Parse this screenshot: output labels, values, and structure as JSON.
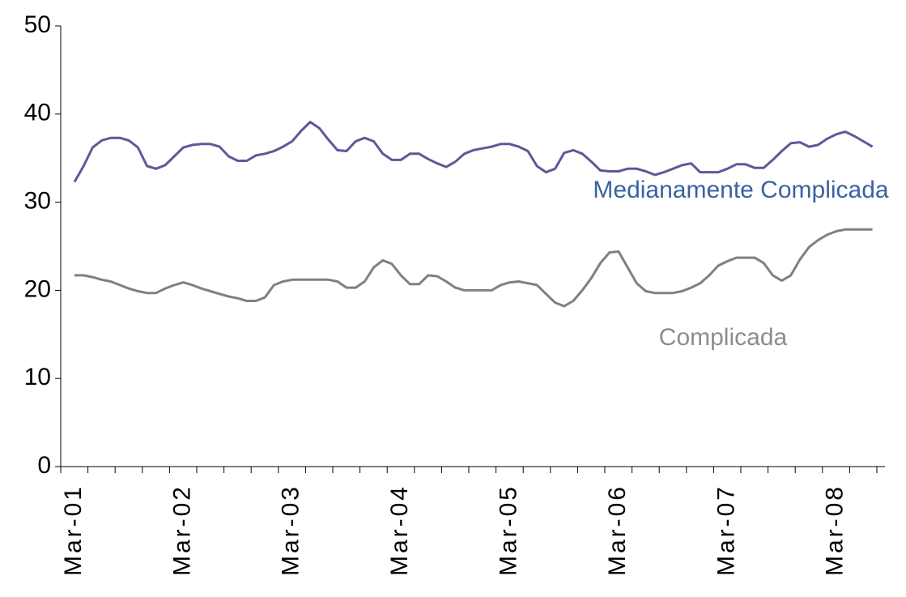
{
  "chart_data": {
    "type": "line",
    "categories": [
      "Mar-01",
      null,
      null,
      null,
      null,
      null,
      null,
      null,
      null,
      null,
      null,
      null,
      "Mar-02",
      null,
      null,
      null,
      null,
      null,
      null,
      null,
      null,
      null,
      null,
      null,
      "Mar-03",
      null,
      null,
      null,
      null,
      null,
      null,
      null,
      null,
      null,
      null,
      null,
      "Mar-04",
      null,
      null,
      null,
      null,
      null,
      null,
      null,
      null,
      null,
      null,
      null,
      "Mar-05",
      null,
      null,
      null,
      null,
      null,
      null,
      null,
      null,
      null,
      null,
      null,
      "Mar-06",
      null,
      null,
      null,
      null,
      null,
      null,
      null,
      null,
      null,
      null,
      null,
      "Mar-07",
      null,
      null,
      null,
      null,
      null,
      null,
      null,
      null,
      null,
      null,
      null,
      "Mar-08",
      null,
      null,
      null,
      null
    ],
    "series": [
      {
        "name": "Medianamente Complicada",
        "color": "#5a5a9a",
        "label_color": "#3a62a0",
        "values": [
          32.3,
          34.1,
          36.2,
          37.0,
          37.3,
          37.3,
          37.0,
          36.2,
          34.1,
          33.8,
          34.2,
          35.2,
          36.2,
          36.5,
          36.6,
          36.6,
          36.3,
          35.2,
          34.7,
          34.7,
          35.3,
          35.5,
          35.8,
          36.3,
          36.9,
          38.1,
          39.1,
          38.4,
          37.1,
          35.9,
          35.8,
          36.9,
          37.3,
          36.9,
          35.5,
          34.8,
          34.8,
          35.5,
          35.5,
          34.9,
          34.4,
          34.0,
          34.6,
          35.5,
          35.9,
          36.1,
          36.3,
          36.6,
          36.6,
          36.3,
          35.8,
          34.1,
          33.4,
          33.8,
          35.6,
          35.9,
          35.5,
          34.6,
          33.6,
          33.5,
          33.5,
          33.8,
          33.8,
          33.5,
          33.1,
          33.4,
          33.8,
          34.2,
          34.4,
          33.4,
          33.4,
          33.4,
          33.8,
          34.3,
          34.3,
          33.9,
          33.9,
          34.8,
          35.8,
          36.7,
          36.8,
          36.3,
          36.5,
          37.2,
          37.7,
          38.0,
          37.5,
          36.9,
          36.3
        ]
      },
      {
        "name": "Complicada",
        "color": "#808080",
        "label_color": "#8c8c8c",
        "values": [
          21.7,
          21.7,
          21.5,
          21.2,
          21.0,
          20.6,
          20.2,
          19.9,
          19.7,
          19.7,
          20.2,
          20.6,
          20.9,
          20.6,
          20.2,
          19.9,
          19.6,
          19.3,
          19.1,
          18.8,
          18.8,
          19.2,
          20.6,
          21.0,
          21.2,
          21.2,
          21.2,
          21.2,
          21.2,
          21.0,
          20.3,
          20.3,
          21.0,
          22.6,
          23.4,
          23.0,
          21.7,
          20.7,
          20.7,
          21.7,
          21.6,
          21.0,
          20.3,
          20.0,
          20.0,
          20.0,
          20.0,
          20.6,
          20.9,
          21.0,
          20.8,
          20.6,
          19.6,
          18.6,
          18.2,
          18.8,
          20.0,
          21.4,
          23.1,
          24.3,
          24.4,
          22.6,
          20.8,
          19.9,
          19.7,
          19.7,
          19.7,
          19.9,
          20.3,
          20.8,
          21.7,
          22.8,
          23.3,
          23.7,
          23.7,
          23.7,
          23.1,
          21.7,
          21.1,
          21.7,
          23.5,
          24.9,
          25.7,
          26.3,
          26.7,
          26.9,
          26.9,
          26.9,
          26.9
        ]
      }
    ],
    "ylim": [
      0,
      50
    ],
    "yticks": [
      0,
      10,
      20,
      30,
      40,
      50
    ],
    "grid": false,
    "legend": "inline"
  }
}
